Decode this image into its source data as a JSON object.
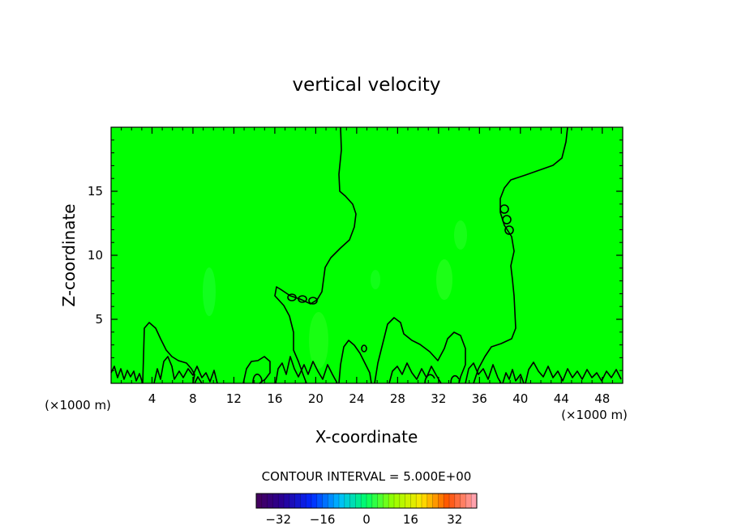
{
  "chart_data": {
    "type": "heatmap",
    "title": "vertical velocity",
    "xlabel": "X-coordinate",
    "ylabel": "Z-coordinate",
    "x_unit_left": "(×1000 m)",
    "x_unit_right": "(×1000 m)",
    "xlim": [
      0,
      50
    ],
    "ylim": [
      0,
      20
    ],
    "x_ticks": [
      4,
      8,
      12,
      16,
      20,
      24,
      28,
      32,
      36,
      40,
      44,
      48
    ],
    "y_ticks": [
      5,
      10,
      15
    ],
    "field_value": 0,
    "contour_levels": [
      0
    ],
    "contour_interval_label": "CONTOUR INTERVAL = 5.000E+00",
    "colorbar": {
      "min": -40,
      "max": 40,
      "step": 2,
      "tick_values": [
        -32,
        -16,
        0,
        16,
        32
      ],
      "tick_labels": [
        "−32",
        "−16",
        "0",
        "16",
        "32"
      ]
    },
    "colors": {
      "field": "#00ff00",
      "contour": "#000000"
    }
  }
}
